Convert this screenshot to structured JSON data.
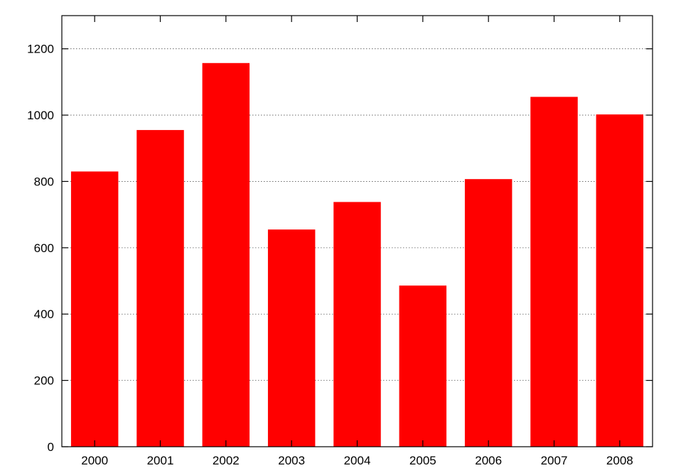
{
  "chart_data": {
    "type": "bar",
    "categories": [
      "2000",
      "2001",
      "2002",
      "2003",
      "2004",
      "2005",
      "2006",
      "2007",
      "2008"
    ],
    "values": [
      830,
      955,
      1157,
      655,
      738,
      486,
      807,
      1055,
      1002
    ],
    "title": "",
    "xlabel": "",
    "ylabel": "",
    "ylim": [
      0,
      1300
    ],
    "yticks": [
      0,
      200,
      400,
      600,
      800,
      1000,
      1200
    ],
    "grid": true,
    "legend": "none",
    "bar_color": "#ff0000"
  }
}
